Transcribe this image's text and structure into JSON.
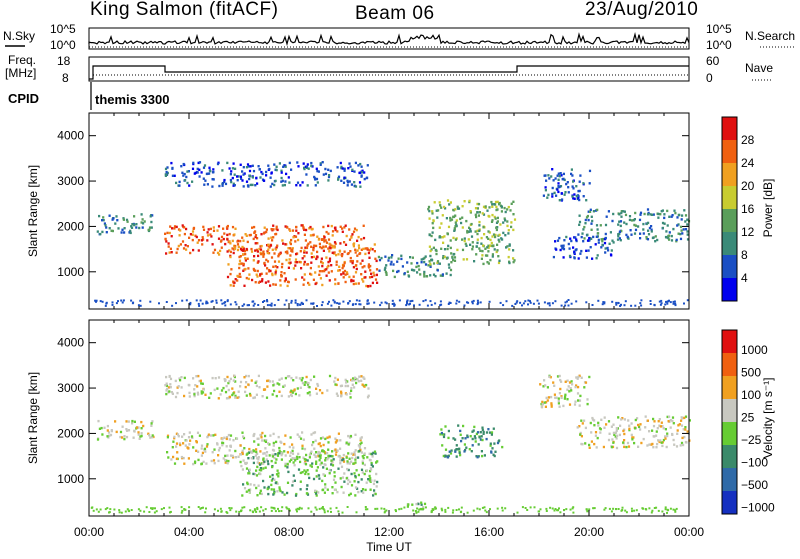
{
  "header": {
    "station": "King Salmon (fitACF)",
    "beam": "Beam 06",
    "date": "23/Aug/2010"
  },
  "top_panels": {
    "nsky_label": "N.Sky",
    "nsky_ticks": [
      "10^5",
      "10^0"
    ],
    "nsearch_label": "N.Search",
    "nsearch_ticks": [
      "10^5",
      "10^0"
    ],
    "freq_label": "Freq.",
    "freq_unit": "[MHz]",
    "freq_ticks": [
      "18",
      "8"
    ],
    "nave_label": "Nave",
    "nave_ticks": [
      "60",
      "0"
    ],
    "cpid_label": "CPID",
    "cpid_value": "themis 3300"
  },
  "chart_data": [
    {
      "type": "heatmap",
      "panel": "power",
      "xlabel": "",
      "ylabel": "Slant Range [km]",
      "x_range_hours": [
        0,
        24
      ],
      "ylim": [
        180,
        4500
      ],
      "yticks": [
        "4000",
        "3000",
        "2000",
        "1000"
      ],
      "colorbar_label": "Power [dB]",
      "colorbar_ticks": [
        "28",
        "24",
        "20",
        "16",
        "12",
        "8",
        "4"
      ],
      "colorbar_colors": [
        "#0000ee",
        "#1a4fc4",
        "#3a8a78",
        "#5a9e5a",
        "#c8cc30",
        "#f0a020",
        "#f06010",
        "#e01010"
      ],
      "echo_regions": [
        {
          "t0": 0.3,
          "t1": 2.6,
          "r0": 1850,
          "r1": 2300,
          "level": 2
        },
        {
          "t0": 3.0,
          "t1": 11.2,
          "r0": 2900,
          "r1": 3450,
          "level": 1
        },
        {
          "t0": 3.0,
          "t1": 11.0,
          "r0": 1400,
          "r1": 2050,
          "level": 6
        },
        {
          "t0": 5.5,
          "t1": 11.5,
          "r0": 700,
          "r1": 1650,
          "level": 6
        },
        {
          "t0": 11.5,
          "t1": 14.5,
          "r0": 900,
          "r1": 1400,
          "level": 2
        },
        {
          "t0": 13.5,
          "t1": 17.0,
          "r0": 1200,
          "r1": 2600,
          "level": 3
        },
        {
          "t0": 18.0,
          "t1": 20.0,
          "r0": 2600,
          "r1": 3300,
          "level": 1
        },
        {
          "t0": 19.5,
          "t1": 24.0,
          "r0": 1700,
          "r1": 2400,
          "level": 2
        },
        {
          "t0": 18.5,
          "t1": 21.0,
          "r0": 1300,
          "r1": 1800,
          "level": 1
        }
      ]
    },
    {
      "type": "heatmap",
      "panel": "velocity",
      "xlabel": "Time UT",
      "ylabel": "Slant Range [km]",
      "x_range_hours": [
        0,
        24
      ],
      "xticks": [
        "00:00",
        "04:00",
        "08:00",
        "12:00",
        "16:00",
        "20:00",
        "00:00"
      ],
      "ylim": [
        180,
        4500
      ],
      "yticks": [
        "4000",
        "3000",
        "2000",
        "1000"
      ],
      "colorbar_label": "Velocity [m s⁻¹]",
      "colorbar_ticks": [
        "1000",
        "500",
        "100",
        "25",
        "−25",
        "−100",
        "−500",
        "−1000"
      ],
      "colorbar_colors": [
        "#1530c0",
        "#2f6aa8",
        "#3a8a6a",
        "#66cc33",
        "#c8c8c0",
        "#f0a020",
        "#f06010",
        "#e01010"
      ],
      "echo_regions": [
        {
          "t0": 0.3,
          "t1": 2.6,
          "r0": 1850,
          "r1": 2300,
          "level": 4
        },
        {
          "t0": 3.0,
          "t1": 11.2,
          "r0": 2800,
          "r1": 3300,
          "level": 4
        },
        {
          "t0": 3.0,
          "t1": 11.0,
          "r0": 1350,
          "r1": 2050,
          "level": 4
        },
        {
          "t0": 6.0,
          "t1": 11.5,
          "r0": 650,
          "r1": 1650,
          "level": 3
        },
        {
          "t0": 14.0,
          "t1": 16.5,
          "r0": 1500,
          "r1": 2200,
          "level": 2
        },
        {
          "t0": 18.0,
          "t1": 20.0,
          "r0": 2600,
          "r1": 3300,
          "level": 4
        },
        {
          "t0": 19.5,
          "t1": 24.0,
          "r0": 1700,
          "r1": 2400,
          "level": 4
        },
        {
          "t0": 12.5,
          "t1": 14.0,
          "r0": 300,
          "r1": 500,
          "level": 3
        }
      ]
    }
  ]
}
